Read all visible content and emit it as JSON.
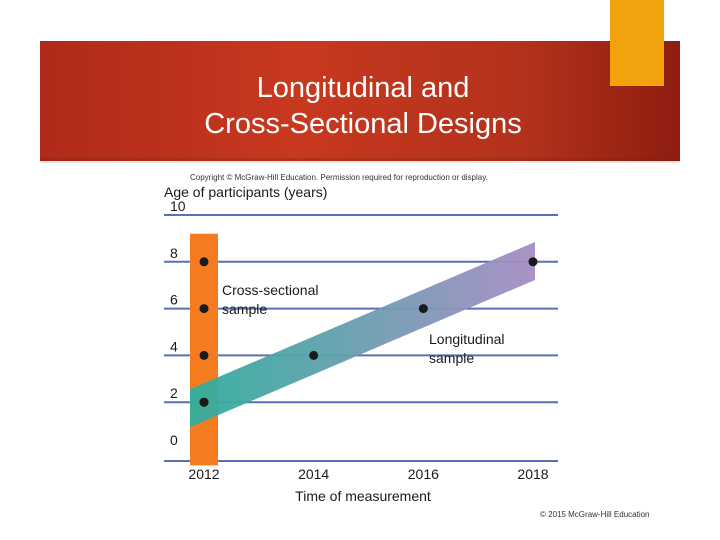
{
  "slide": {
    "title_line1": "Longitudinal and",
    "title_line2": "Cross-Sectional Designs",
    "copyright": "Copyright © McGraw-Hill Education. Permission required for reproduction or display.",
    "footer": "© 2015 McGraw-Hill Education"
  },
  "colors": {
    "banner": "#c0341d",
    "accent": "#f2a20c",
    "cross_band": "#f47b20",
    "long_start": "#2fae9c",
    "long_end": "#a78cc4",
    "gridline": "#5b6fb5",
    "point": "#1a1a1a"
  },
  "chart_data": {
    "type": "scatter",
    "title": "",
    "ylabel": "Age of participants (years)",
    "xlabel": "Time of measurement",
    "x_ticks": [
      2012,
      2014,
      2016,
      2018
    ],
    "y_ticks": [
      0,
      2,
      4,
      6,
      8,
      10
    ],
    "xlim": [
      2012,
      2018
    ],
    "ylim": [
      0,
      10
    ],
    "series": [
      {
        "name": "Cross-sectional sample",
        "label_line1": "Cross-sectional",
        "label_line2": "sample",
        "points": [
          {
            "x": 2012,
            "y": 2
          },
          {
            "x": 2012,
            "y": 4
          },
          {
            "x": 2012,
            "y": 6
          },
          {
            "x": 2012,
            "y": 8
          }
        ]
      },
      {
        "name": "Longitudinal sample",
        "label_line1": "Longitudinal",
        "label_line2": "sample",
        "points": [
          {
            "x": 2012,
            "y": 2
          },
          {
            "x": 2014,
            "y": 4
          },
          {
            "x": 2016,
            "y": 6
          },
          {
            "x": 2018,
            "y": 8
          }
        ]
      }
    ]
  }
}
